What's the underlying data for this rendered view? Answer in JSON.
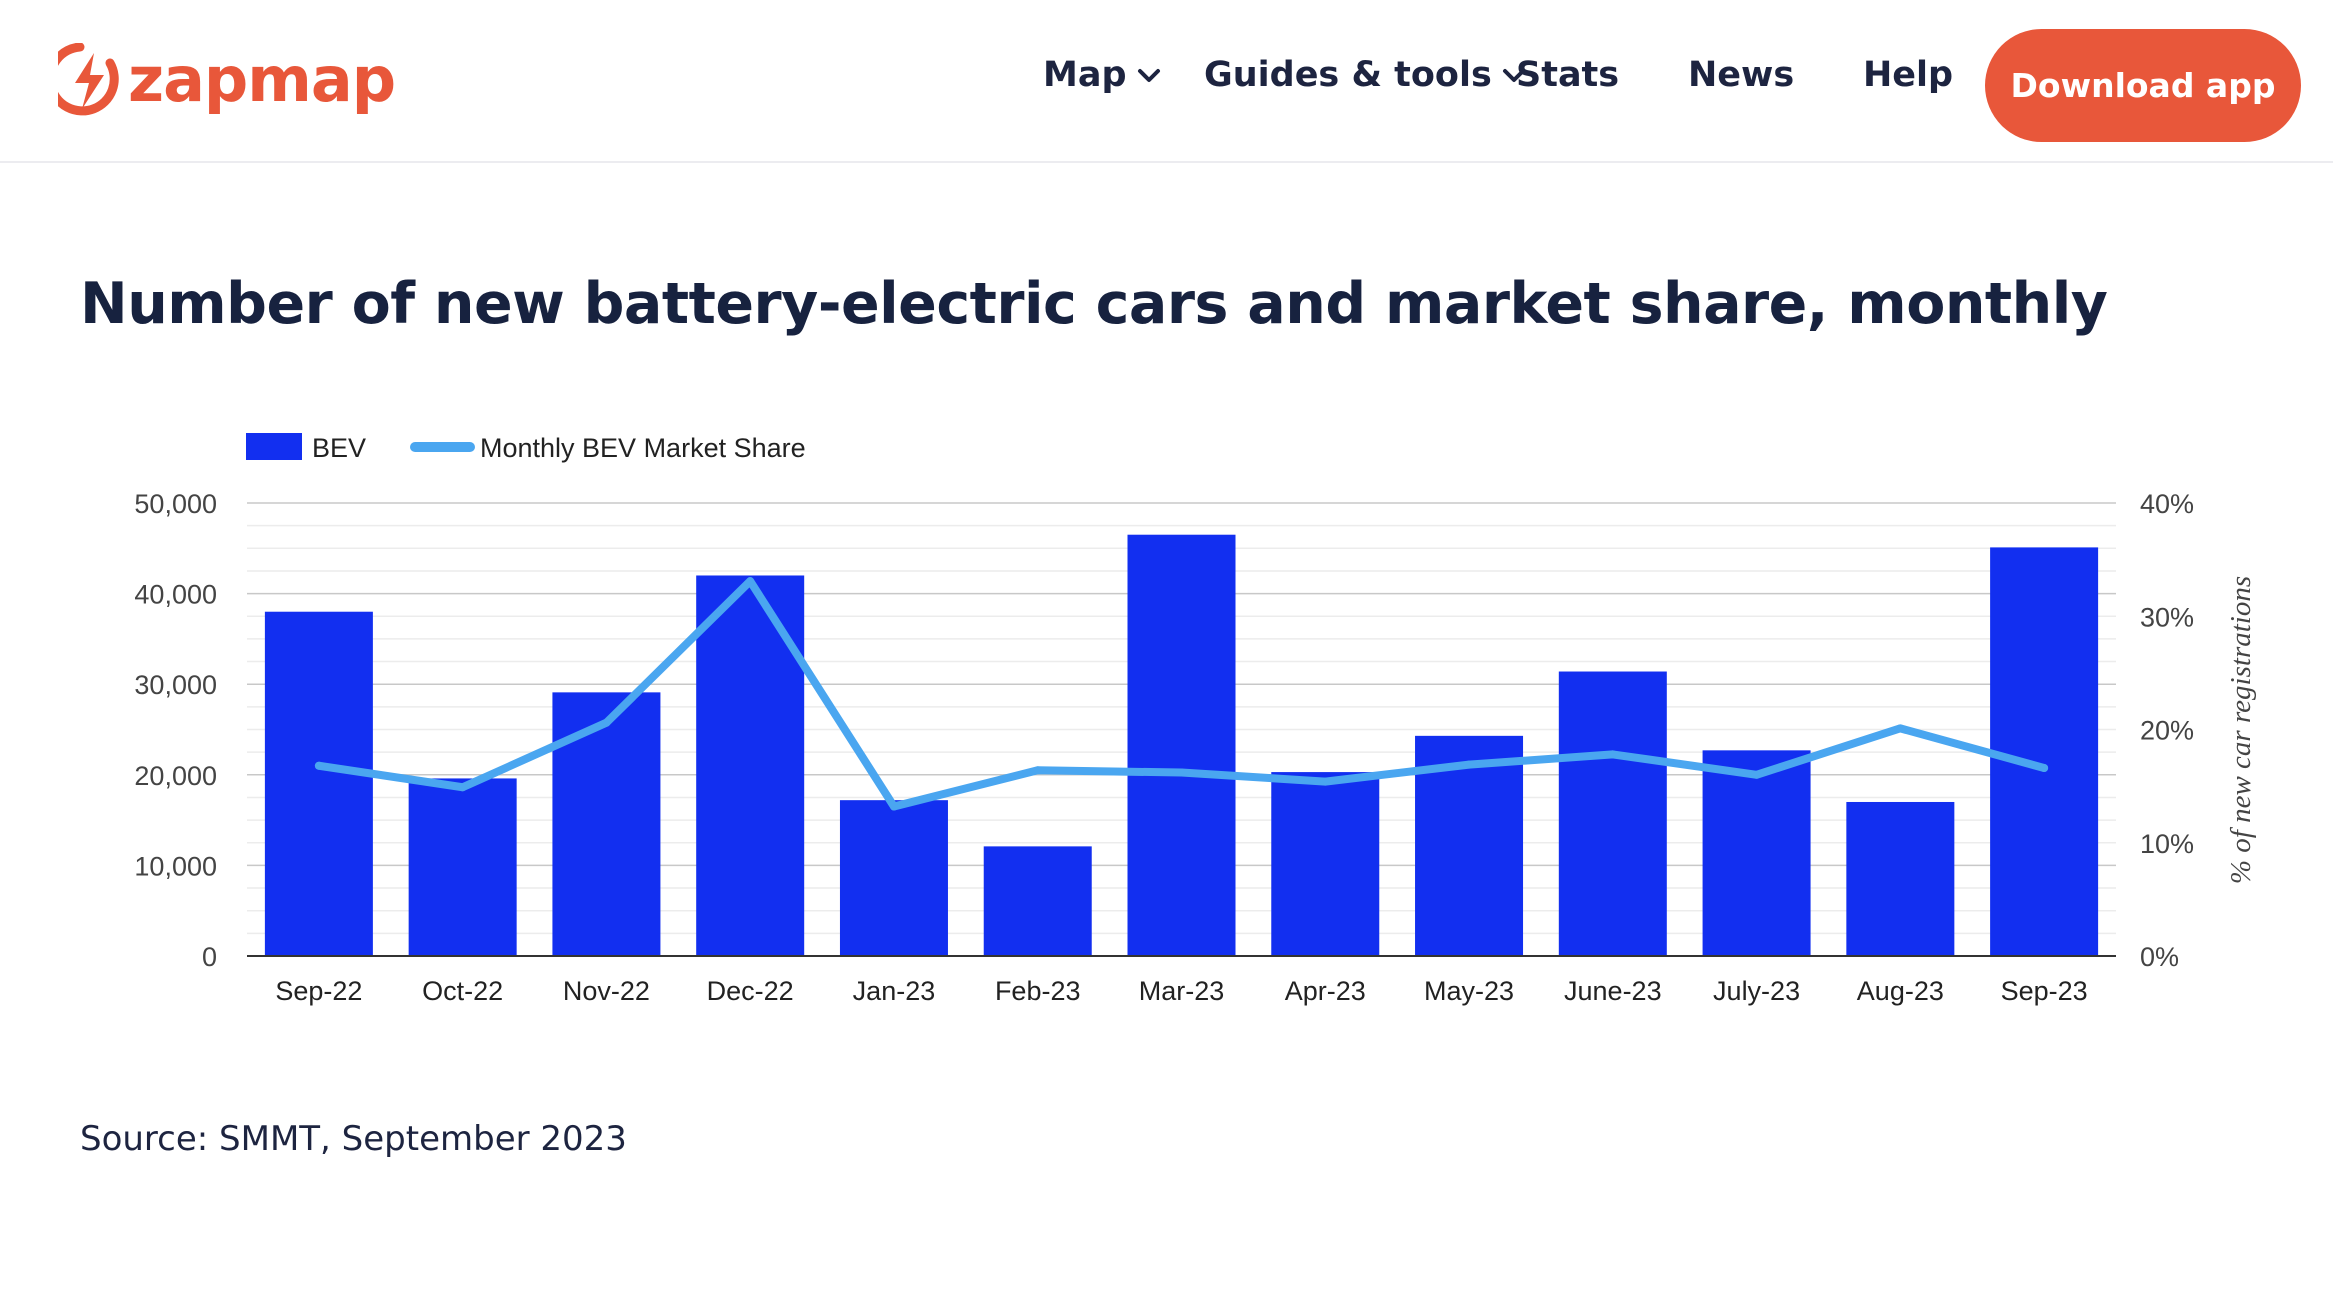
{
  "header": {
    "logo_text": "zapmap",
    "nav": [
      {
        "label": "Map",
        "has_dropdown": true
      },
      {
        "label": "Guides & tools",
        "has_dropdown": true
      },
      {
        "label": "Stats",
        "has_dropdown": false
      },
      {
        "label": "News",
        "has_dropdown": false
      },
      {
        "label": "Help",
        "has_dropdown": false
      }
    ],
    "download_label": "Download app"
  },
  "page_title": "Number of new battery-electric cars and market share, monthly",
  "source_text": "Source: SMMT, September 2023",
  "colors": {
    "brand": "#e8573a",
    "bar": "#122ff0",
    "line": "#4aa6f0",
    "text": "#1d2440"
  },
  "chart_data": {
    "type": "bar",
    "categories": [
      "Sep-22",
      "Oct-22",
      "Nov-22",
      "Dec-22",
      "Jan-23",
      "Feb-23",
      "Mar-23",
      "Apr-23",
      "May-23",
      "June-23",
      "July-23",
      "Aug-23",
      "Sep-23"
    ],
    "series": [
      {
        "name": "BEV",
        "type": "bar",
        "axis": "left",
        "values": [
          38000,
          19600,
          29100,
          42000,
          17200,
          12100,
          46500,
          20300,
          24300,
          31400,
          22700,
          17000,
          45100
        ]
      },
      {
        "name": "Monthly BEV Market Share",
        "type": "line",
        "axis": "right",
        "values": [
          16.8,
          14.9,
          20.6,
          33.1,
          13.2,
          16.4,
          16.2,
          15.4,
          16.9,
          17.8,
          16.0,
          20.1,
          16.6
        ]
      }
    ],
    "yticks_left": [
      "0",
      "10,000",
      "20,000",
      "30,000",
      "40,000",
      "50,000"
    ],
    "yticks_right": [
      "0%",
      "10%",
      "20%",
      "30%",
      "40%"
    ],
    "ylim_left": [
      0,
      50000
    ],
    "ylim_right": [
      0,
      40
    ],
    "ylabel_right": "% of new car registrations",
    "legend": {
      "position": "top-left",
      "entries": [
        "BEV",
        "Monthly BEV Market Share"
      ]
    },
    "grid": true
  }
}
